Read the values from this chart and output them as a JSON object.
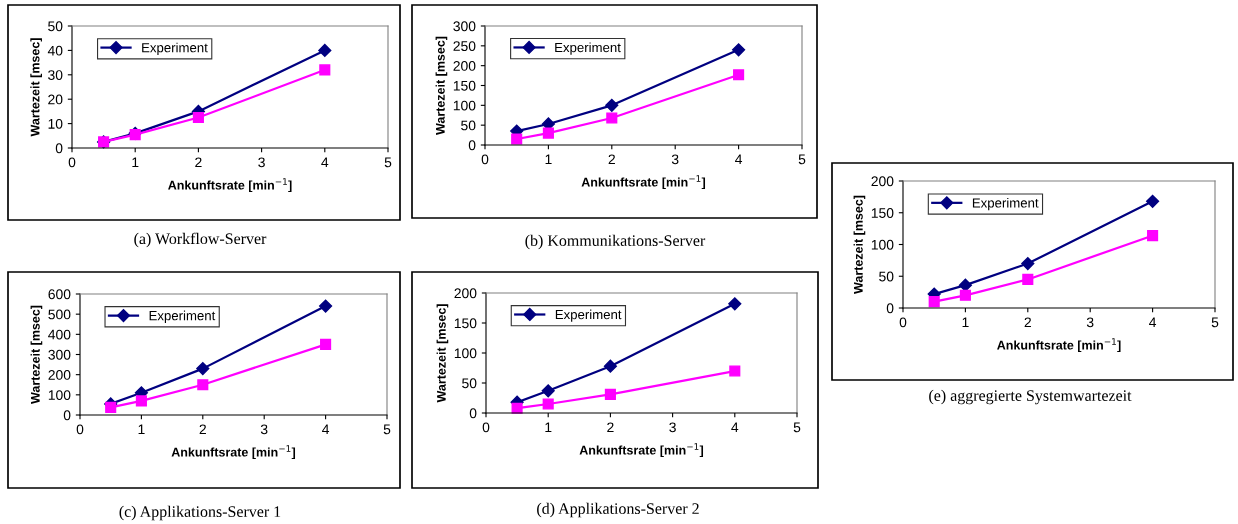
{
  "chart_data": [
    {
      "type": "line",
      "xlabel": "Ankunftsrate [min$^{−1}$]",
      "ylabel": "Wartezeit [msec]",
      "x": [
        0.5,
        1,
        2,
        4
      ],
      "xlim": [
        0,
        5
      ],
      "xticks": [
        0,
        1,
        2,
        3,
        4,
        5
      ],
      "ylim": [
        0,
        50
      ],
      "yticks": [
        0,
        10,
        20,
        30,
        40,
        50
      ],
      "grid": false,
      "legend": "top left",
      "annotations": [
        "(a) Workflow-Server"
      ],
      "series": [
        {
          "name": "Experiment",
          "color": "#000080",
          "marker": "diamond",
          "values": [
            2.5,
            6,
            15,
            40
          ]
        },
        {
          "color": "#ff00ff",
          "marker": "square",
          "values": [
            2.5,
            5.5,
            12.5,
            32
          ]
        }
      ]
    },
    {
      "type": "line",
      "xlabel": "Ankunftsrate [min$^{−1}$]",
      "ylabel": "Wartezeit [msec]",
      "x": [
        0.5,
        1,
        2,
        4
      ],
      "xlim": [
        0,
        5
      ],
      "xticks": [
        0,
        1,
        2,
        3,
        4,
        5
      ],
      "ylim": [
        0,
        300
      ],
      "yticks": [
        0,
        50,
        100,
        150,
        200,
        250,
        300
      ],
      "grid": false,
      "legend": "top left",
      "annotations": [
        "(b) Kommunikations-Server"
      ],
      "series": [
        {
          "name": "Experiment",
          "color": "#000080",
          "marker": "diamond",
          "values": [
            35,
            53,
            100,
            240
          ]
        },
        {
          "color": "#ff00ff",
          "marker": "square",
          "values": [
            15,
            30,
            68,
            177
          ]
        }
      ]
    },
    {
      "type": "line",
      "xlabel": "Ankunftsrate [min$^{−1}$]",
      "ylabel": "Wartezeit [msec]",
      "x": [
        0.5,
        1,
        2,
        4
      ],
      "xlim": [
        0,
        5
      ],
      "xticks": [
        0,
        1,
        2,
        3,
        4,
        5
      ],
      "ylim": [
        0,
        600
      ],
      "yticks": [
        0,
        100,
        200,
        300,
        400,
        500,
        600
      ],
      "grid": false,
      "legend": "top left",
      "annotations": [
        "(c) Applikations-Server 1"
      ],
      "series": [
        {
          "name": "Experiment",
          "color": "#000080",
          "marker": "diamond",
          "values": [
            55,
            110,
            230,
            540
          ]
        },
        {
          "color": "#ff00ff",
          "marker": "square",
          "values": [
            38,
            70,
            150,
            350
          ]
        }
      ]
    },
    {
      "type": "line",
      "xlabel": "Ankunftsrate [min$^{−1}$]",
      "ylabel": "Wartezeit [msec]",
      "x": [
        0.5,
        1,
        2,
        4
      ],
      "xlim": [
        0,
        5
      ],
      "xticks": [
        0,
        1,
        2,
        3,
        4,
        5
      ],
      "ylim": [
        0,
        200
      ],
      "yticks": [
        0,
        50,
        100,
        150,
        200
      ],
      "grid": false,
      "legend": "top left",
      "annotations": [
        "(d) Applikations-Server 2"
      ],
      "series": [
        {
          "name": "Experiment",
          "color": "#000080",
          "marker": "diamond",
          "values": [
            18,
            37,
            78,
            182
          ]
        },
        {
          "color": "#ff00ff",
          "marker": "square",
          "values": [
            8,
            15,
            31,
            70
          ]
        }
      ]
    },
    {
      "type": "line",
      "xlabel": "Ankunftsrate [min$^{−1}$]",
      "ylabel": "Wartezeit [msec]",
      "x": [
        0.5,
        1,
        2,
        4
      ],
      "xlim": [
        0,
        5
      ],
      "xticks": [
        0,
        1,
        2,
        3,
        4,
        5
      ],
      "ylim": [
        0,
        200
      ],
      "yticks": [
        0,
        50,
        100,
        150,
        200
      ],
      "grid": false,
      "legend": "top left",
      "annotations": [
        "(e) aggregierte Systemwartezeit"
      ],
      "series": [
        {
          "name": "Experiment",
          "color": "#000080",
          "marker": "diamond",
          "values": [
            22,
            36,
            70,
            168
          ]
        },
        {
          "color": "#ff00ff",
          "marker": "square",
          "values": [
            10,
            20,
            45,
            114
          ]
        }
      ]
    }
  ]
}
